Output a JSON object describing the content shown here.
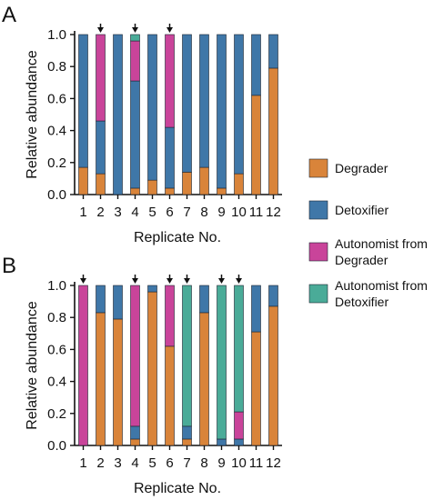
{
  "colors": {
    "Degrader": "#d9843a",
    "Detoxifier": "#3f77a8",
    "Autonomist from Degrader": "#c9449a",
    "Autonomist from Detoxifier": "#4aab98"
  },
  "legend": [
    {
      "key": "Degrader",
      "lines": [
        "Degrader"
      ]
    },
    {
      "key": "Detoxifier",
      "lines": [
        "Detoxifier"
      ]
    },
    {
      "key": "Autonomist from Degrader",
      "lines": [
        "Autonomist from",
        "Degrader"
      ]
    },
    {
      "key": "Autonomist from Detoxifier",
      "lines": [
        "Autonomist from",
        "Detoxifier"
      ]
    }
  ],
  "chart_data": [
    {
      "panel": "A",
      "type": "bar",
      "stacked": true,
      "xlabel": "Replicate No.",
      "ylabel": "Relative abundance",
      "ylim": [
        0,
        1.0
      ],
      "yticks": [
        "0.0",
        "0.2",
        "0.4",
        "0.6",
        "0.8",
        "1.0"
      ],
      "categories": [
        "1",
        "2",
        "3",
        "4",
        "5",
        "6",
        "7",
        "8",
        "9",
        "10",
        "11",
        "12"
      ],
      "series": [
        {
          "name": "Degrader",
          "values": [
            0.17,
            0.13,
            0.0,
            0.04,
            0.09,
            0.04,
            0.14,
            0.17,
            0.04,
            0.13,
            0.62,
            0.79
          ]
        },
        {
          "name": "Detoxifier",
          "values": [
            0.83,
            0.33,
            1.0,
            0.67,
            0.91,
            0.38,
            0.86,
            0.83,
            0.96,
            0.87,
            0.38,
            0.21
          ]
        },
        {
          "name": "Autonomist from Degrader",
          "values": [
            0,
            0.54,
            0,
            0.25,
            0,
            0.58,
            0,
            0,
            0,
            0,
            0,
            0
          ]
        },
        {
          "name": "Autonomist from Detoxifier",
          "values": [
            0,
            0,
            0,
            0.04,
            0,
            0,
            0,
            0,
            0,
            0,
            0,
            0
          ]
        }
      ],
      "arrows": [
        "2",
        "4",
        "6"
      ]
    },
    {
      "panel": "B",
      "type": "bar",
      "stacked": true,
      "xlabel": "Replicate No.",
      "ylabel": "Relative abundance",
      "ylim": [
        0,
        1.0
      ],
      "yticks": [
        "0.0",
        "0.2",
        "0.4",
        "0.6",
        "0.8",
        "1.0"
      ],
      "categories": [
        "1",
        "2",
        "3",
        "4",
        "5",
        "6",
        "7",
        "8",
        "9",
        "10",
        "11",
        "12"
      ],
      "series": [
        {
          "name": "Degrader",
          "values": [
            0.0,
            0.83,
            0.79,
            0.04,
            0.96,
            0.62,
            0.04,
            0.83,
            0.0,
            0.0,
            0.71,
            0.87
          ]
        },
        {
          "name": "Detoxifier",
          "values": [
            0.0,
            0.17,
            0.21,
            0.08,
            0.04,
            0.0,
            0.08,
            0.17,
            0.04,
            0.04,
            0.29,
            0.13
          ]
        },
        {
          "name": "Autonomist from Degrader",
          "values": [
            1.0,
            0,
            0,
            0.88,
            0,
            0.38,
            0,
            0,
            0,
            0.17,
            0,
            0
          ]
        },
        {
          "name": "Autonomist from Detoxifier",
          "values": [
            0,
            0,
            0,
            0,
            0,
            0,
            0.88,
            0,
            0.96,
            0.79,
            0,
            0
          ]
        }
      ],
      "arrows": [
        "1",
        "4",
        "6",
        "7",
        "9",
        "10"
      ]
    }
  ]
}
